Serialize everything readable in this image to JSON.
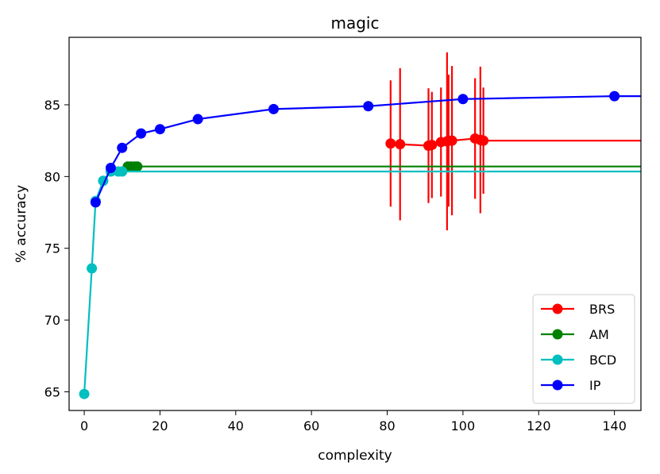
{
  "chart_data": {
    "type": "line",
    "title": "magic",
    "xlabel": "complexity",
    "ylabel": "% accuracy",
    "xlim": [
      -4,
      147
    ],
    "ylim": [
      63.7,
      89.7
    ],
    "xticks": [
      0,
      20,
      40,
      60,
      80,
      100,
      120,
      140
    ],
    "yticks": [
      65,
      70,
      75,
      80,
      85
    ],
    "grid": false,
    "legend_position": "bottom-right",
    "series": [
      {
        "name": "BRS",
        "color": "#ff0000",
        "x": [
          80.9,
          83.4,
          90.9,
          91.8,
          94.2,
          95.8,
          96.2,
          97.1,
          103.2,
          104.6,
          105.4
        ],
        "y": [
          82.3,
          82.25,
          82.15,
          82.2,
          82.4,
          82.45,
          82.5,
          82.5,
          82.65,
          82.55,
          82.5
        ],
        "yerr": [
          4.4,
          5.3,
          4.0,
          3.7,
          3.8,
          6.2,
          4.6,
          5.2,
          4.2,
          5.1,
          3.7
        ],
        "extend_to_x": 147
      },
      {
        "name": "AM",
        "color": "#008000",
        "x": [
          11.5,
          12.3,
          13.3,
          14.0
        ],
        "y": [
          80.7,
          80.7,
          80.7,
          80.7
        ],
        "extend_to_x": 147
      },
      {
        "name": "BCD",
        "color": "#00bfbf",
        "x": [
          0,
          2,
          3,
          5,
          7,
          9,
          10
        ],
        "y": [
          64.85,
          73.6,
          78.3,
          79.7,
          80.35,
          80.35,
          80.35
        ],
        "extend_to_x": 147
      },
      {
        "name": "IP",
        "color": "#0000ff",
        "x": [
          3,
          7,
          10,
          15,
          20,
          30,
          50,
          75,
          100,
          140
        ],
        "y": [
          78.2,
          80.6,
          82.0,
          83.0,
          83.3,
          84.0,
          84.7,
          84.9,
          85.4,
          85.6
        ],
        "extend_to_x": 147
      }
    ]
  }
}
